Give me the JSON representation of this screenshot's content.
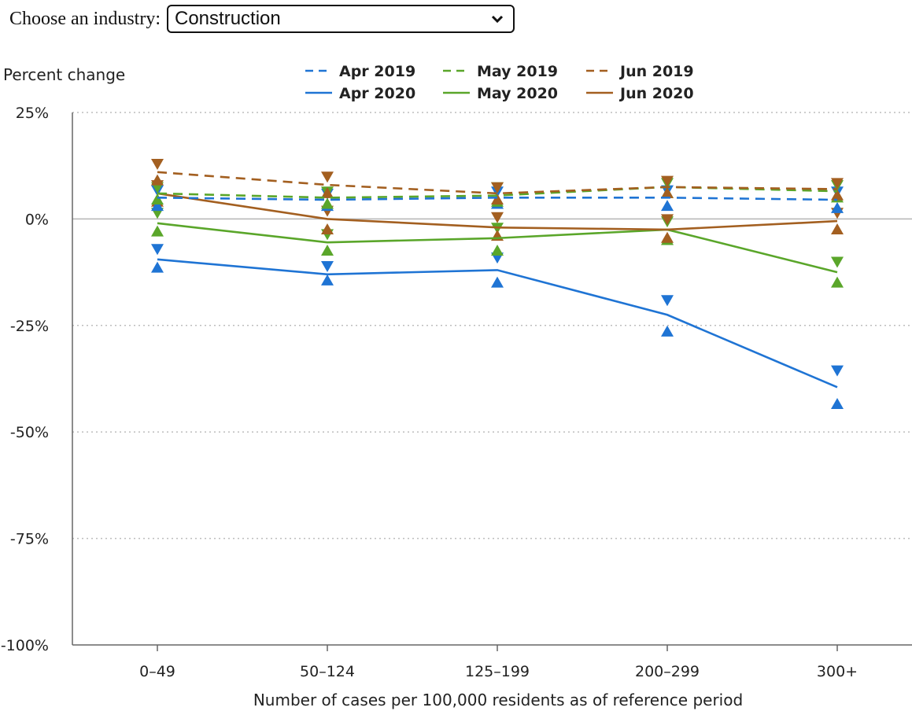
{
  "control": {
    "label": "Choose an industry:",
    "selected": "Construction"
  },
  "chart_data": {
    "type": "line",
    "ylabel": "Percent change",
    "xlabel": "Number of cases per 100,000 residents as of reference period",
    "categories": [
      "0–49",
      "50–124",
      "125–199",
      "200–299",
      "300+"
    ],
    "y_ticks": [
      25,
      0,
      -25,
      -50,
      -75,
      -100
    ],
    "y_tick_labels": [
      "25%",
      "0%",
      "-25%",
      "-50%",
      "-75%",
      "-100%"
    ],
    "ylim": [
      -100,
      25
    ],
    "grid": "horizontal dotted",
    "legend_position": "top",
    "series": [
      {
        "name": "Apr 2019",
        "color": "#1f74d4",
        "dash": true,
        "values": [
          5,
          4.5,
          5,
          5,
          4.5
        ],
        "upper": [
          6.8,
          6,
          6.5,
          6.8,
          6.5
        ],
        "lower": [
          3,
          3,
          3.5,
          3,
          2.5
        ]
      },
      {
        "name": "May 2019",
        "color": "#5aa62a",
        "dash": true,
        "values": [
          6,
          5,
          5.5,
          7.5,
          6.5
        ],
        "upper": [
          7.5,
          6.5,
          7.5,
          8.5,
          8
        ],
        "lower": [
          4.5,
          3.5,
          4,
          6,
          5
        ]
      },
      {
        "name": "Jun 2019",
        "color": "#a35f20",
        "dash": true,
        "values": [
          11,
          8,
          6,
          7.5,
          7
        ],
        "upper": [
          13,
          10,
          7.5,
          9,
          8.5
        ],
        "lower": [
          9,
          6,
          4.5,
          6,
          5.5
        ]
      },
      {
        "name": "Apr 2020",
        "color": "#1f74d4",
        "dash": false,
        "values": [
          -9.5,
          -13,
          -12,
          -22.5,
          -39.5
        ],
        "upper": [
          -7,
          -11,
          -9,
          -19,
          -35.5
        ],
        "lower": [
          -11.5,
          -14.5,
          -15,
          -26.5,
          -43.5
        ]
      },
      {
        "name": "May 2020",
        "color": "#5aa62a",
        "dash": false,
        "values": [
          -1,
          -5.5,
          -4.5,
          -2.5,
          -12.5
        ],
        "upper": [
          1.5,
          -3.5,
          -2,
          -0.5,
          -10
        ],
        "lower": [
          -3,
          -7.5,
          -7.5,
          -5,
          -15
        ]
      },
      {
        "name": "Jun 2020",
        "color": "#a35f20",
        "dash": false,
        "values": [
          6,
          0,
          -2,
          -2.5,
          -0.5
        ],
        "upper": [
          8,
          2,
          0.5,
          0,
          1.5
        ],
        "lower": [
          4,
          -2.5,
          -4,
          -4.5,
          -2.5
        ]
      }
    ]
  }
}
